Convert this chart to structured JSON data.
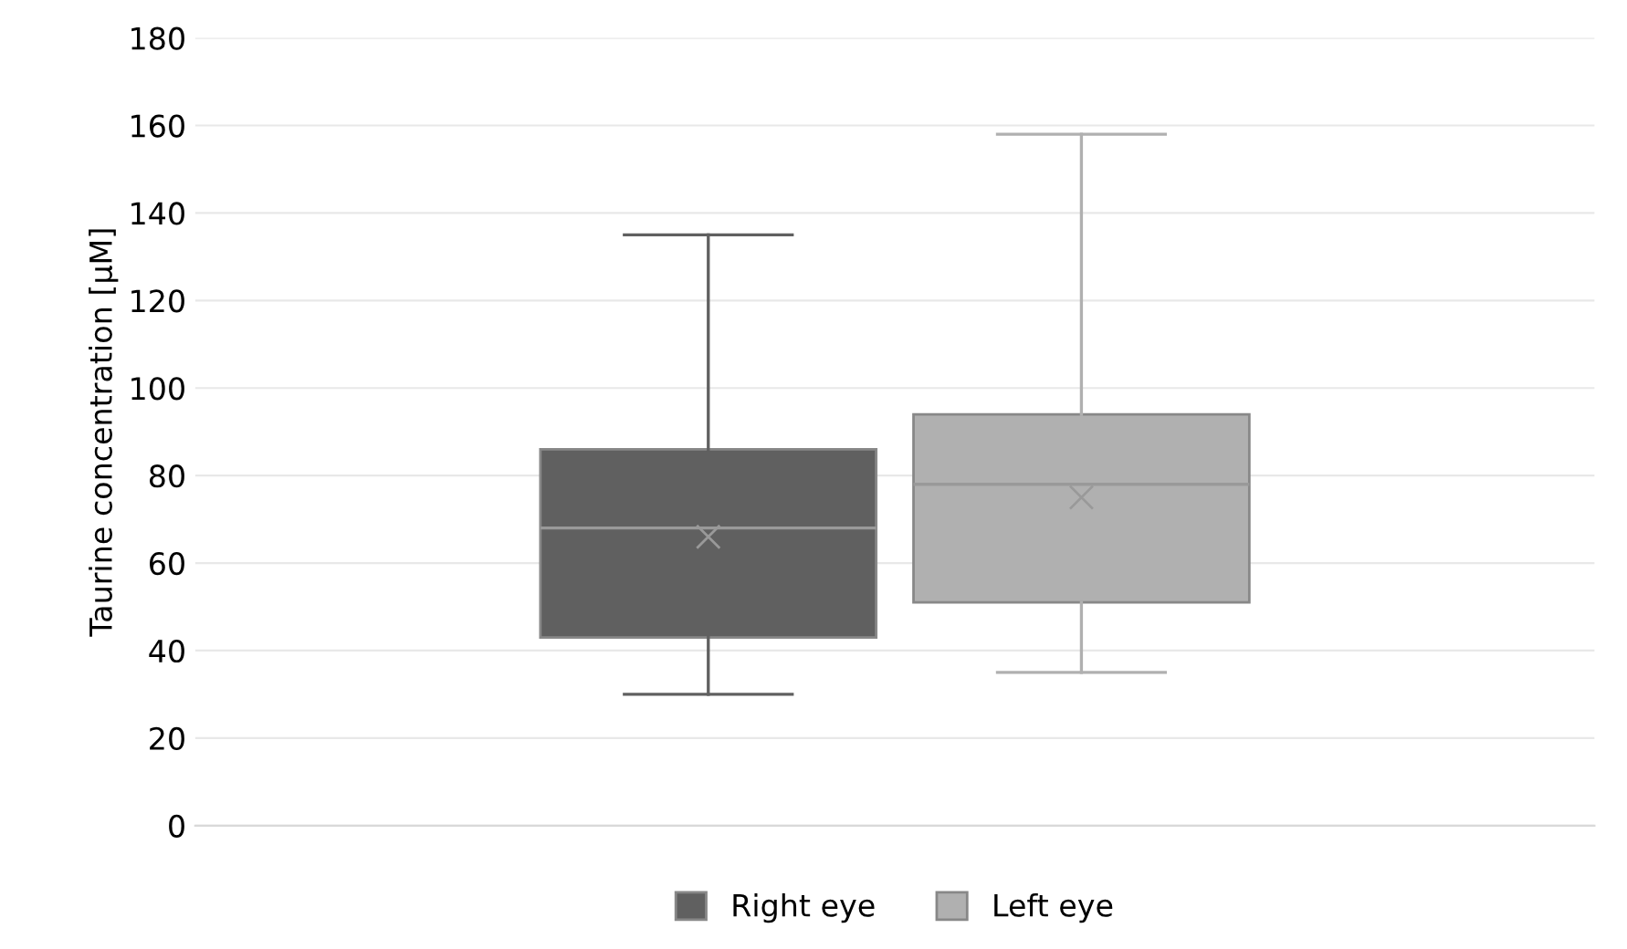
{
  "chart_data": {
    "type": "box",
    "ylabel": "Taurine concentration [µM]",
    "categories": [
      null
    ],
    "series": [
      {
        "name": "Right eye",
        "color": "#606060",
        "boxes": [
          {
            "low": 30,
            "q1": 43,
            "median": 68,
            "q3": 86,
            "high": 135,
            "mean": 66
          }
        ]
      },
      {
        "name": "Left eye",
        "color": "#b0b0b0",
        "boxes": [
          {
            "low": 35,
            "q1": 51,
            "median": 78,
            "q3": 94,
            "high": 158,
            "mean": 75
          }
        ]
      }
    ],
    "ylim": [
      0,
      180
    ],
    "yticks": [
      0,
      20,
      40,
      60,
      80,
      100,
      120,
      140,
      160,
      180
    ],
    "grid": "y",
    "legend": "bottom"
  }
}
